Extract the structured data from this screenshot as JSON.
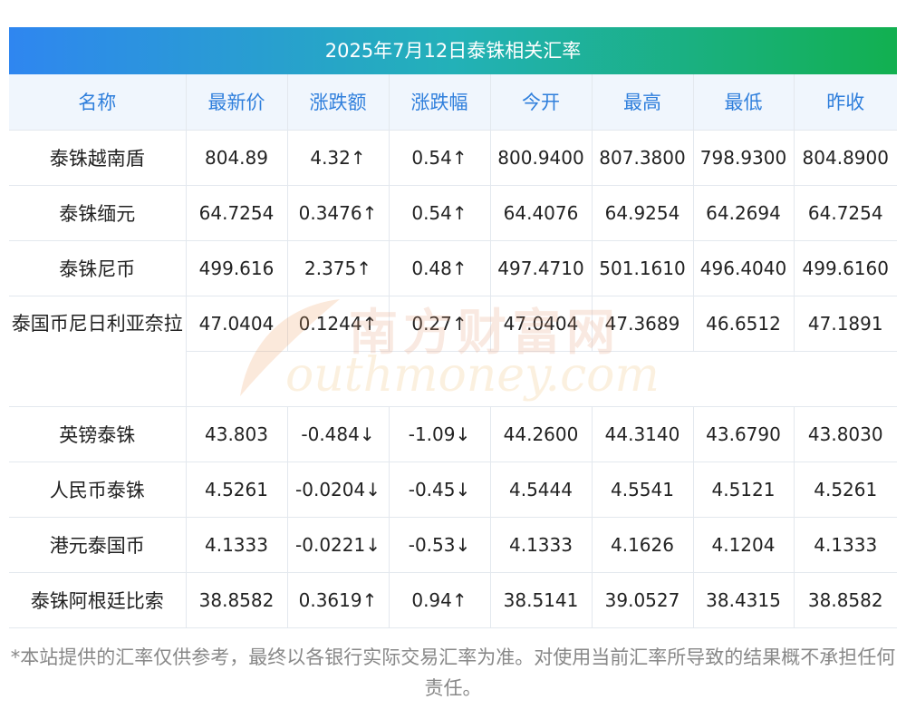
{
  "title": "2025年7月12日泰铢相关汇率",
  "headers": [
    "名称",
    "最新价",
    "涨跌额",
    "涨跌幅",
    "今开",
    "最高",
    "最低",
    "昨收"
  ],
  "rows": [
    {
      "name": "泰铢越南盾",
      "latest": "804.89",
      "change": "4.32↑",
      "pct": "0.54↑",
      "open": "800.9400",
      "high": "807.3800",
      "low": "798.9300",
      "prev": "804.8900",
      "dir": "up"
    },
    {
      "name": "泰铢缅元",
      "latest": "64.7254",
      "change": "0.3476↑",
      "pct": "0.54↑",
      "open": "64.4076",
      "high": "64.9254",
      "low": "64.2694",
      "prev": "64.7254",
      "dir": "up"
    },
    {
      "name": "泰铢尼币",
      "latest": "499.616",
      "change": "2.375↑",
      "pct": "0.48↑",
      "open": "497.4710",
      "high": "501.1610",
      "low": "496.4040",
      "prev": "499.6160",
      "dir": "up"
    },
    {
      "name": "泰国币尼日利亚奈拉",
      "latest": "47.0404",
      "change": "0.1244↑",
      "pct": "0.27↑",
      "open": "47.0404",
      "high": "47.3689",
      "low": "46.6512",
      "prev": "47.1891",
      "dir": "up"
    },
    {
      "name": "英镑泰铢",
      "latest": "43.803",
      "change": "-0.484↓",
      "pct": "-1.09↓",
      "open": "44.2600",
      "high": "44.3140",
      "low": "43.6790",
      "prev": "43.8030",
      "dir": "down"
    },
    {
      "name": "人民币泰铢",
      "latest": "4.5261",
      "change": "-0.0204↓",
      "pct": "-0.45↓",
      "open": "4.5444",
      "high": "4.5541",
      "low": "4.5121",
      "prev": "4.5261",
      "dir": "down"
    },
    {
      "name": "港元泰国币",
      "latest": "4.1333",
      "change": "-0.0221↓",
      "pct": "-0.53↓",
      "open": "4.1333",
      "high": "4.1626",
      "low": "4.1204",
      "prev": "4.1333",
      "dir": "down"
    },
    {
      "name": "泰铢阿根廷比索",
      "latest": "38.8582",
      "change": "0.3619↑",
      "pct": "0.94↑",
      "open": "38.5141",
      "high": "39.0527",
      "low": "38.4315",
      "prev": "38.8582",
      "dir": "up"
    }
  ],
  "watermark": {
    "cn": "南方财富网",
    "en": "outhmoney.com"
  },
  "footnote": "*本站提供的汇率仅供参考，最终以各银行实际交易汇率为准。对使用当前汇率所导致的结果概不承担任何责任。",
  "colors": {
    "up": "#e8262f",
    "down": "#1a8a2e",
    "header_text": "#2f7fdc",
    "header_bg": "#f0f6fd"
  }
}
